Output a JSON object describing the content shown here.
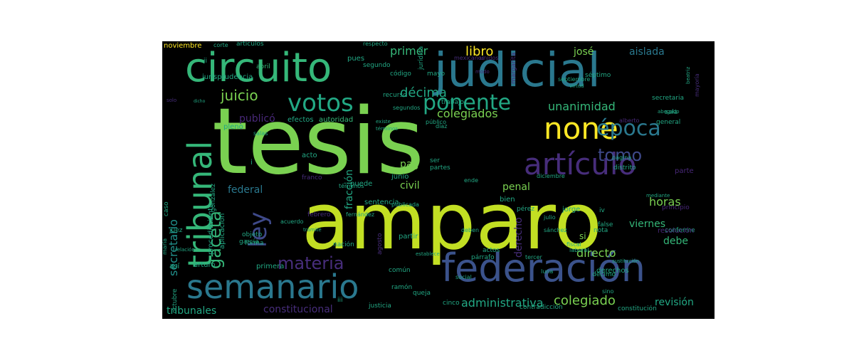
{
  "wordcloud": {
    "background": "#000000",
    "words": [
      {
        "text": "tesis",
        "color": "#7ad151"
      },
      {
        "text": "amparo",
        "color": "#c2df23"
      },
      {
        "text": "judicial",
        "color": "#2a788e"
      },
      {
        "text": "circuito",
        "color": "#35b779"
      },
      {
        "text": "federación",
        "color": "#3b528b"
      },
      {
        "text": "semanario",
        "color": "#2a788e"
      },
      {
        "text": "tribunal",
        "color": "#35b779"
      },
      {
        "text": "none",
        "color": "#fde725"
      },
      {
        "text": "artículo",
        "color": "#472d7b"
      },
      {
        "text": "votos",
        "color": "#22a884"
      },
      {
        "text": "ponente",
        "color": "#22a884"
      },
      {
        "text": "época",
        "color": "#2a788e"
      },
      {
        "text": "ley",
        "color": "#3e4989"
      },
      {
        "text": "gaceta",
        "color": "#35b779"
      },
      {
        "text": "materia",
        "color": "#472d7b"
      },
      {
        "text": "tomo",
        "color": "#3e4989"
      },
      {
        "text": "juicio",
        "color": "#7ad151"
      },
      {
        "text": "décima",
        "color": "#22a884"
      },
      {
        "text": "unanimidad",
        "color": "#35b779"
      },
      {
        "text": "colegiados",
        "color": "#7ad151"
      },
      {
        "text": "libro",
        "color": "#fde725"
      },
      {
        "text": "primer",
        "color": "#35b779"
      },
      {
        "text": "josé",
        "color": "#7ad151"
      },
      {
        "text": "aislada",
        "color": "#2a788e"
      },
      {
        "text": "secretario",
        "color": "#21918c"
      },
      {
        "text": "federal",
        "color": "#2a788e"
      },
      {
        "text": "horas",
        "color": "#7ad151"
      },
      {
        "text": "viernes",
        "color": "#35b779"
      },
      {
        "text": "colegiado",
        "color": "#7ad151"
      },
      {
        "text": "directo",
        "color": "#7ad151"
      },
      {
        "text": "derecho",
        "color": "#472d7b"
      },
      {
        "text": "administrativa",
        "color": "#22a884"
      },
      {
        "text": "constitucional",
        "color": "#472d7b"
      },
      {
        "text": "tribunales",
        "color": "#22a884"
      },
      {
        "text": "revisión",
        "color": "#22a884"
      },
      {
        "text": "debe",
        "color": "#35b779"
      },
      {
        "text": "penal",
        "color": "#7ad151"
      },
      {
        "text": "civil",
        "color": "#7ad151"
      },
      {
        "text": "pag",
        "color": "#7ad151"
      },
      {
        "text": "fracción",
        "color": "#22a884"
      },
      {
        "text": "publicó",
        "color": "#482878"
      },
      {
        "text": "si",
        "color": "#7ad151"
      },
      {
        "text": "noviembre",
        "color": "#fde725"
      },
      {
        "text": "corte",
        "color": "#22a884"
      },
      {
        "text": "artículos",
        "color": "#22a884"
      },
      {
        "text": "respecto",
        "color": "#22a884"
      },
      {
        "text": "jurisprudencia",
        "color": "#22a884"
      },
      {
        "text": "código",
        "color": "#22a884"
      },
      {
        "text": "mayo",
        "color": "#22a884"
      },
      {
        "text": "abril",
        "color": "#35b779"
      },
      {
        "text": "segundo",
        "color": "#22a884"
      },
      {
        "text": "pues",
        "color": "#22a884"
      },
      {
        "text": "recurso",
        "color": "#22a884"
      },
      {
        "text": "efectos",
        "color": "#22a884"
      },
      {
        "text": "autoridad",
        "color": "#35b779"
      },
      {
        "text": "trabajo",
        "color": "#22a884"
      },
      {
        "text": "secretaria",
        "color": "#22a884"
      },
      {
        "text": "general",
        "color": "#22a884"
      },
      {
        "text": "sala",
        "color": "#22a884"
      },
      {
        "text": "conforme",
        "color": "#22a884"
      },
      {
        "text": "parte",
        "color": "#482878"
      },
      {
        "text": "principio",
        "color": "#482878"
      },
      {
        "text": "resolución",
        "color": "#482878"
      },
      {
        "text": "acto",
        "color": "#22a884"
      },
      {
        "text": "puede",
        "color": "#22a884"
      },
      {
        "text": "junio",
        "color": "#22a884"
      },
      {
        "text": "sentencia",
        "color": "#22a884"
      },
      {
        "text": "bien",
        "color": "#22a884"
      },
      {
        "text": "pérez",
        "color": "#22a884"
      },
      {
        "text": "jorge",
        "color": "#22a884"
      },
      {
        "text": "iv",
        "color": "#22a884"
      },
      {
        "text": "nota",
        "color": "#22a884"
      },
      {
        "text": "false",
        "color": "#22a884"
      },
      {
        "text": "derechos",
        "color": "#22a884"
      },
      {
        "text": "tercer",
        "color": "#22a884"
      },
      {
        "text": "fiscal",
        "color": "#22a884"
      },
      {
        "text": "laboral",
        "color": "#22a884"
      },
      {
        "text": "juez",
        "color": "#22a884"
      },
      {
        "text": "objeto",
        "color": "#22a884"
      },
      {
        "text": "garcía",
        "color": "#22a884"
      },
      {
        "text": "así",
        "color": "#22a884"
      },
      {
        "text": "arturo",
        "color": "#22a884"
      },
      {
        "text": "primera",
        "color": "#22a884"
      },
      {
        "text": "partir",
        "color": "#22a884"
      },
      {
        "text": "común",
        "color": "#22a884"
      },
      {
        "text": "queja",
        "color": "#22a884"
      },
      {
        "text": "ramón",
        "color": "#22a884"
      },
      {
        "text": "justicia",
        "color": "#22a884"
      },
      {
        "text": "cinco",
        "color": "#22a884"
      },
      {
        "text": "contradicción",
        "color": "#22a884"
      },
      {
        "text": "constitución",
        "color": "#22a884"
      },
      {
        "text": "octubre",
        "color": "#22a884"
      },
      {
        "text": "procedimiento",
        "color": "#22a884"
      },
      {
        "text": "aplicación",
        "color": "#22a884"
      },
      {
        "text": "gonzález",
        "color": "#22a884"
      },
      {
        "text": "caso",
        "color": "#22a884"
      },
      {
        "text": "maría",
        "color": "#22a884"
      },
      {
        "text": "dicho",
        "color": "#22a884"
      },
      {
        "text": "ser",
        "color": "#22a884"
      },
      {
        "text": "partes",
        "color": "#22a884"
      },
      {
        "text": "sino",
        "color": "#22a884"
      },
      {
        "text": "mexicanos",
        "color": "#472d7b"
      },
      {
        "text": "unidos",
        "color": "#472d7b"
      },
      {
        "text": "séptimo",
        "color": "#22a884"
      },
      {
        "text": "septiembre",
        "color": "#22a884"
      },
      {
        "text": "mayoría",
        "color": "#472d7b"
      },
      {
        "text": "publicada",
        "color": "#22a884"
      },
      {
        "text": "términos",
        "color": "#22a884"
      },
      {
        "text": "febrero",
        "color": "#472d7b"
      },
      {
        "text": "distrito",
        "color": "#22a884"
      },
      {
        "text": "diciembre",
        "color": "#22a884"
      },
      {
        "text": "página",
        "color": "#22a884"
      },
      {
        "text": "pleno",
        "color": "#22a884"
      },
      {
        "text": "segundos",
        "color": "#22a884"
      },
      {
        "text": "público",
        "color": "#22a884"
      },
      {
        "text": "díaz",
        "color": "#22a884"
      },
      {
        "text": "salas",
        "color": "#22a884"
      },
      {
        "text": "acuerdo",
        "color": "#22a884"
      },
      {
        "text": "jurídica",
        "color": "#22a884"
      },
      {
        "text": "margarita",
        "color": "#472d7b"
      },
      {
        "text": "nación",
        "color": "#22a884"
      },
      {
        "text": "deben",
        "color": "#22a884"
      },
      {
        "text": "actos",
        "color": "#22a884"
      },
      {
        "text": "párrafo",
        "color": "#22a884"
      },
      {
        "text": "luna",
        "color": "#22a884"
      },
      {
        "text": "alberto",
        "color": "#482878"
      },
      {
        "text": "fernández",
        "color": "#22a884"
      },
      {
        "text": "agosto",
        "color": "#472d7b"
      },
      {
        "text": "relación",
        "color": "#22a884"
      },
      {
        "text": "iii",
        "color": "#22a884"
      },
      {
        "text": "ii",
        "color": "#22a884"
      },
      {
        "text": "i",
        "color": "#22a884"
      },
      {
        "text": "social",
        "color": "#22a884"
      },
      {
        "text": "décimo",
        "color": "#22a884"
      },
      {
        "text": "franco",
        "color": "#472d7b"
      },
      {
        "text": "sánchez",
        "color": "#22a884"
      },
      {
        "text": "forma",
        "color": "#22a884"
      },
      {
        "text": "solo",
        "color": "#472d7b"
      },
      {
        "text": "julio",
        "color": "#22a884"
      },
      {
        "text": "ende",
        "color": "#22a884"
      },
      {
        "text": "beatriz",
        "color": "#22a884"
      },
      {
        "text": "mediante",
        "color": "#22a884"
      },
      {
        "text": "modo",
        "color": "#472d7b"
      },
      {
        "text": "sustitución",
        "color": "#22a884"
      },
      {
        "text": "existe",
        "color": "#22a884"
      },
      {
        "text": "establece",
        "color": "#22a884"
      },
      {
        "text": "trámite",
        "color": "#22a884"
      },
      {
        "text": "virtud",
        "color": "#22a884"
      },
      {
        "text": "términos",
        "color": "#22a884"
      },
      {
        "text": "abogado",
        "color": "#22a884"
      }
    ]
  }
}
